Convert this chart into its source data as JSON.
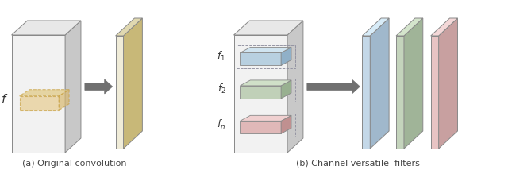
{
  "bg_color": "#ffffff",
  "caption_a": "(a) Original convolution",
  "caption_b": "(b) Channel versatile  filters",
  "label_f": "$f$",
  "label_f1": "$f_1$",
  "label_f2": "$f_2$",
  "label_fn": "$f_n$",
  "colors": {
    "input_face": "#f2f2f2",
    "input_side": "#c8c8c8",
    "input_top": "#e8e8e8",
    "filter_face": "#f0ecd8",
    "filter_side": "#c8b878",
    "filter_top": "#e0d8b0",
    "dashed_filter_fill": "#e8cc90",
    "dashed_filter_edge": "#c8a040",
    "blue_face": "#b8d0e0",
    "blue_side": "#90b0c8",
    "blue_top": "#d0e4f0",
    "green_face": "#c0d0b8",
    "green_side": "#98b090",
    "green_top": "#d0e0c8",
    "pink_face": "#e0b8b8",
    "pink_side": "#c09090",
    "pink_top": "#f0d0d0",
    "out_blue_face": "#c4d8e8",
    "out_blue_side": "#a0b8cc",
    "out_blue_top": "#d8ecf8",
    "out_green_face": "#c4d4bc",
    "out_green_side": "#a0b498",
    "out_green_top": "#d4e4cc",
    "out_pink_face": "#e8c4c4",
    "out_pink_side": "#c8a0a0",
    "out_pink_top": "#f4d8d8",
    "arrow_color": "#606060"
  }
}
